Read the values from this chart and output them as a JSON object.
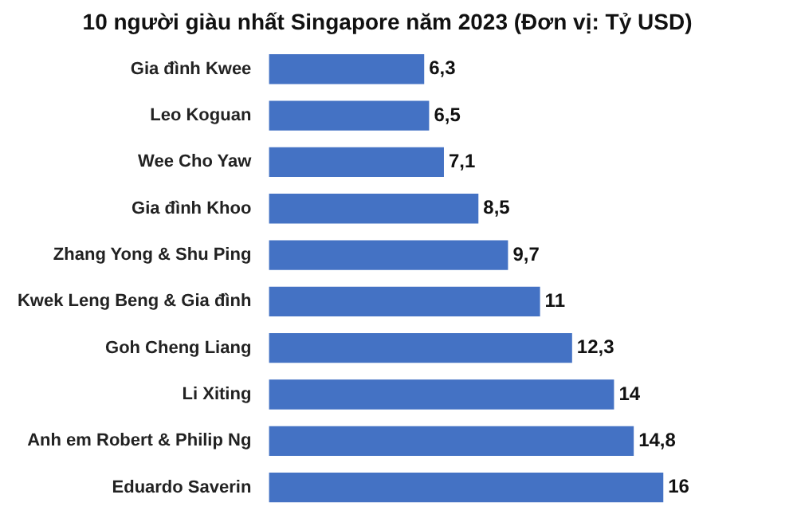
{
  "chart_data": {
    "type": "bar",
    "orientation": "horizontal",
    "title": "10 người giàu nhất Singapore năm 2023 (Đơn vị: Tỷ USD)",
    "categories": [
      "Gia đình Kwee",
      "Leo Koguan",
      "Wee Cho Yaw",
      "Gia đình Khoo",
      "Zhang Yong & Shu Ping",
      "Kwek Leng Beng & Gia đình",
      "Goh Cheng Liang",
      "Li Xiting",
      "Anh em Robert & Philip Ng",
      "Eduardo Saverin"
    ],
    "values": [
      6.3,
      6.5,
      7.1,
      8.5,
      9.7,
      11,
      12.3,
      14,
      14.8,
      16
    ],
    "value_labels": [
      "6,3",
      "6,5",
      "7,1",
      "8,5",
      "9,7",
      "11",
      "12,3",
      "14",
      "14,8",
      "16"
    ],
    "color": "#4472c4"
  }
}
